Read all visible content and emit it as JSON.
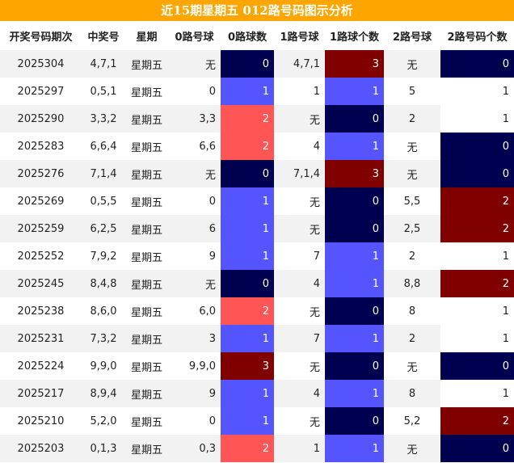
{
  "header": {
    "title": "近15期星期五 012路号码图示分析"
  },
  "table": {
    "columns": [
      "开奖号码期次",
      "中奖号",
      "星期",
      "0路号球",
      "0路球数",
      "1路号球",
      "1路球个数",
      "2路号球",
      "2路号码个数"
    ],
    "rows": [
      [
        "2025304",
        "4,7,1",
        "星期五",
        "无",
        0,
        "4,7,1",
        3,
        "无",
        0
      ],
      [
        "2025297",
        "0,5,1",
        "星期五",
        "0",
        1,
        "1",
        1,
        "5",
        1
      ],
      [
        "2025290",
        "3,3,2",
        "星期五",
        "3,3",
        2,
        "无",
        0,
        "2",
        1
      ],
      [
        "2025283",
        "6,6,4",
        "星期五",
        "6,6",
        2,
        "4",
        1,
        "无",
        0
      ],
      [
        "2025276",
        "7,1,4",
        "星期五",
        "无",
        0,
        "7,1,4",
        3,
        "无",
        0
      ],
      [
        "2025269",
        "0,5,5",
        "星期五",
        "0",
        1,
        "无",
        0,
        "5,5",
        2
      ],
      [
        "2025259",
        "6,2,5",
        "星期五",
        "6",
        1,
        "无",
        0,
        "2,5",
        2
      ],
      [
        "2025252",
        "7,9,2",
        "星期五",
        "9",
        1,
        "7",
        1,
        "2",
        1
      ],
      [
        "2025245",
        "8,4,8",
        "星期五",
        "无",
        0,
        "4",
        1,
        "8,8",
        2
      ],
      [
        "2025238",
        "8,6,0",
        "星期五",
        "6,0",
        2,
        "无",
        0,
        "8",
        1
      ],
      [
        "2025231",
        "7,3,2",
        "星期五",
        "3",
        1,
        "7",
        1,
        "2",
        1
      ],
      [
        "2025224",
        "9,9,0",
        "星期五",
        "9,9,0",
        3,
        "无",
        0,
        "无",
        0
      ],
      [
        "2025217",
        "8,9,4",
        "星期五",
        "9",
        1,
        "4",
        1,
        "8",
        1
      ],
      [
        "2025210",
        "5,2,0",
        "星期五",
        "0",
        1,
        "无",
        0,
        "5,2",
        2
      ],
      [
        "2025203",
        "0,1,3",
        "星期五",
        "0,3",
        2,
        "1",
        1,
        "无",
        0
      ]
    ]
  }
}
